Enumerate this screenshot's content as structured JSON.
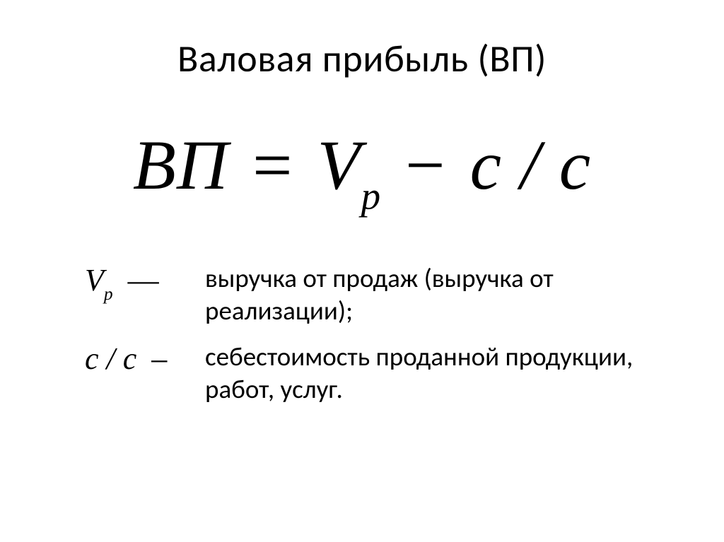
{
  "title": "Валовая прибыль (ВП)",
  "formula": {
    "lhs": "ВП",
    "eq": "=",
    "v": "V",
    "v_sub": "p",
    "minus": "−",
    "cc": "с / с"
  },
  "definitions": [
    {
      "symbol_main": "V",
      "symbol_sub": "p",
      "symbol_suffix": "",
      "dash": "—",
      "text": "выручка от продаж (выручка от реализации);"
    },
    {
      "symbol_main": "с / с",
      "symbol_sub": "",
      "symbol_suffix": "",
      "dash": "–",
      "text": "себестоимость проданной продукции, работ, услуг."
    }
  ],
  "colors": {
    "background": "#ffffff",
    "text": "#000000"
  },
  "fonts": {
    "title_family": "Calibri",
    "title_size_pt": 40,
    "formula_family": "Times New Roman",
    "formula_size_pt": 72,
    "def_symbol_size_pt": 32,
    "def_text_size_pt": 28
  }
}
